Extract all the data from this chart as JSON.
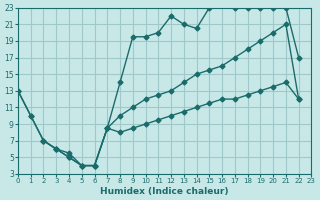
{
  "xlabel": "Humidex (Indice chaleur)",
  "ylabel": "",
  "background_color": "#c8e8e8",
  "grid_color": "#a0c8c8",
  "line_color": "#1a6b6b",
  "xlim": [
    0,
    23
  ],
  "ylim": [
    3,
    23
  ],
  "xticks": [
    0,
    1,
    2,
    3,
    4,
    5,
    6,
    7,
    8,
    9,
    10,
    11,
    12,
    13,
    14,
    15,
    16,
    17,
    18,
    19,
    20,
    21,
    22,
    23
  ],
  "yticks": [
    3,
    5,
    7,
    9,
    11,
    13,
    15,
    17,
    19,
    21,
    23
  ],
  "line1_x": [
    0,
    1,
    2,
    3,
    4,
    5,
    6,
    7,
    8,
    9,
    10,
    11,
    12,
    13,
    14,
    15,
    16,
    17,
    18,
    19,
    20,
    21,
    22
  ],
  "line1_y": [
    13,
    10,
    7,
    6,
    5,
    4,
    4,
    8.5,
    14,
    19.5,
    19.5,
    20,
    22,
    21,
    20.5,
    23,
    23.5,
    23,
    23,
    23,
    23,
    23,
    17
  ],
  "line2_x": [
    0,
    1,
    2,
    3,
    4,
    5,
    6,
    7,
    8,
    9,
    10,
    11,
    12,
    13,
    14,
    15,
    16,
    17,
    18,
    19,
    20,
    21,
    22
  ],
  "line2_y": [
    13,
    10,
    7,
    6,
    5,
    4,
    4,
    8.5,
    10,
    11,
    12,
    12.5,
    13,
    14,
    15,
    15.5,
    16,
    17,
    18,
    19,
    20,
    21,
    12
  ],
  "line3_x": [
    2,
    3,
    4,
    5,
    6,
    7,
    8,
    9,
    10,
    11,
    12,
    13,
    14,
    15,
    16,
    17,
    18,
    19,
    20,
    21,
    22
  ],
  "line3_y": [
    7,
    6,
    5.5,
    4,
    4,
    8.5,
    8,
    8.5,
    9,
    9.5,
    10,
    10.5,
    11,
    11.5,
    12,
    12,
    12.5,
    13,
    13.5,
    14,
    12
  ]
}
